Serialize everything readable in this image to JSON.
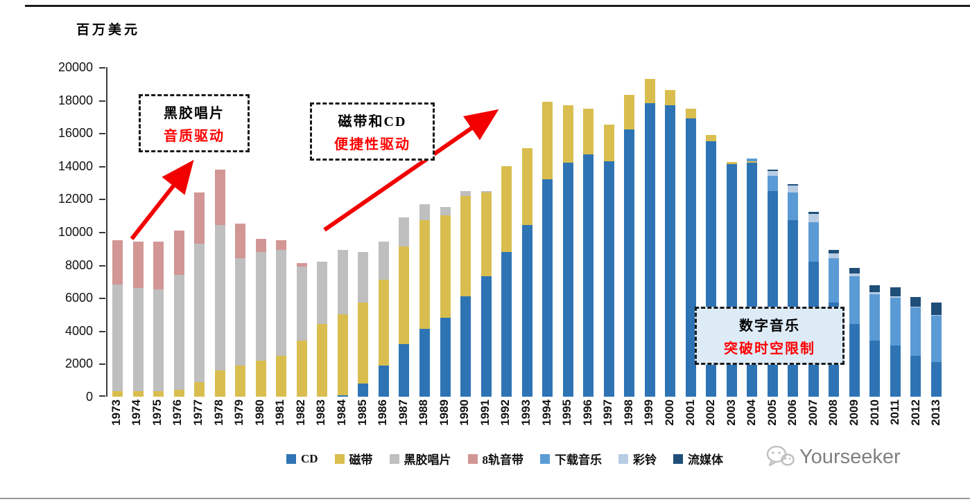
{
  "page": {
    "unit_label": "百万美元",
    "watermark": "Yourseeker"
  },
  "annotations": [
    {
      "line1": "黑胶唱片",
      "line2": "音质驱动"
    },
    {
      "line1": "磁带和CD",
      "line2": "便捷性驱动"
    },
    {
      "line1": "数字音乐",
      "line2": "突破时空限制"
    }
  ],
  "chart_data": {
    "type": "bar",
    "stacked": true,
    "title": "",
    "xlabel": "",
    "ylabel": "百万美元",
    "ylim": [
      0,
      20000
    ],
    "ytick_step": 2000,
    "grid": false,
    "legend_position": "bottom",
    "categories": [
      "1973",
      "1974",
      "1975",
      "1976",
      "1977",
      "1978",
      "1979",
      "1980",
      "1981",
      "1982",
      "1983",
      "1984",
      "1985",
      "1986",
      "1987",
      "1988",
      "1989",
      "1990",
      "1991",
      "1992",
      "1993",
      "1994",
      "1995",
      "1996",
      "1997",
      "1998",
      "1999",
      "2000",
      "2001",
      "2002",
      "2003",
      "2004",
      "2005",
      "2006",
      "2007",
      "2008",
      "2009",
      "2010",
      "2011",
      "2012",
      "2013"
    ],
    "series": [
      {
        "name": "CD",
        "color": "#2e74b5",
        "values": [
          0,
          0,
          0,
          0,
          0,
          0,
          0,
          0,
          0,
          0,
          0,
          100,
          800,
          1900,
          3200,
          4100,
          4800,
          6100,
          7300,
          8800,
          10400,
          13200,
          14200,
          14700,
          14300,
          16200,
          17800,
          17700,
          16900,
          15500,
          14100,
          14200,
          12500,
          10700,
          8200,
          5700,
          4400,
          3400,
          3100,
          2500,
          2100
        ]
      },
      {
        "name": "磁带",
        "color": "#d9be4f",
        "values": [
          350,
          350,
          350,
          400,
          900,
          1600,
          1900,
          2200,
          2500,
          3400,
          4400,
          4900,
          4900,
          5200,
          5900,
          6600,
          6200,
          6100,
          5100,
          5200,
          4700,
          4700,
          3500,
          2800,
          2200,
          2100,
          1500,
          900,
          600,
          400,
          150,
          100,
          0,
          0,
          0,
          0,
          0,
          0,
          0,
          0,
          0
        ]
      },
      {
        "name": "黑胶唱片",
        "color": "#bfbfbf",
        "values": [
          6450,
          6250,
          6150,
          7000,
          8400,
          8800,
          6500,
          6600,
          6400,
          4500,
          3800,
          3900,
          3100,
          2300,
          1800,
          1000,
          500,
          300,
          100,
          0,
          0,
          0,
          0,
          0,
          0,
          0,
          0,
          0,
          0,
          0,
          0,
          0,
          0,
          0,
          0,
          0,
          0,
          0,
          0,
          0,
          0
        ]
      },
      {
        "name": "8轨音带",
        "color": "#d29695",
        "values": [
          2700,
          2800,
          2900,
          2700,
          3100,
          3400,
          2100,
          800,
          600,
          200,
          0,
          0,
          0,
          0,
          0,
          0,
          0,
          0,
          0,
          0,
          0,
          0,
          0,
          0,
          0,
          0,
          0,
          0,
          0,
          0,
          0,
          0,
          0,
          0,
          0,
          0,
          0,
          0,
          0,
          0,
          0
        ]
      },
      {
        "name": "下载音乐",
        "color": "#5b9bd5",
        "values": [
          0,
          0,
          0,
          0,
          0,
          0,
          0,
          0,
          0,
          0,
          0,
          0,
          0,
          0,
          0,
          0,
          0,
          0,
          0,
          0,
          0,
          0,
          0,
          0,
          0,
          0,
          0,
          0,
          0,
          0,
          0,
          150,
          900,
          1700,
          2400,
          2700,
          2900,
          2800,
          2900,
          2900,
          2800
        ]
      },
      {
        "name": "彩铃",
        "color": "#b8cce4",
        "values": [
          0,
          0,
          0,
          0,
          0,
          0,
          0,
          0,
          0,
          0,
          0,
          0,
          0,
          0,
          0,
          0,
          0,
          0,
          0,
          0,
          0,
          0,
          0,
          0,
          0,
          0,
          0,
          0,
          0,
          0,
          0,
          0,
          300,
          400,
          500,
          300,
          200,
          150,
          100,
          50,
          50
        ]
      },
      {
        "name": "流媒体",
        "color": "#1f4e79",
        "values": [
          0,
          0,
          0,
          0,
          0,
          0,
          0,
          0,
          0,
          0,
          0,
          0,
          0,
          0,
          0,
          0,
          0,
          0,
          0,
          0,
          0,
          0,
          0,
          0,
          0,
          0,
          0,
          0,
          0,
          0,
          0,
          0,
          100,
          100,
          100,
          200,
          300,
          400,
          550,
          600,
          750
        ]
      }
    ]
  }
}
